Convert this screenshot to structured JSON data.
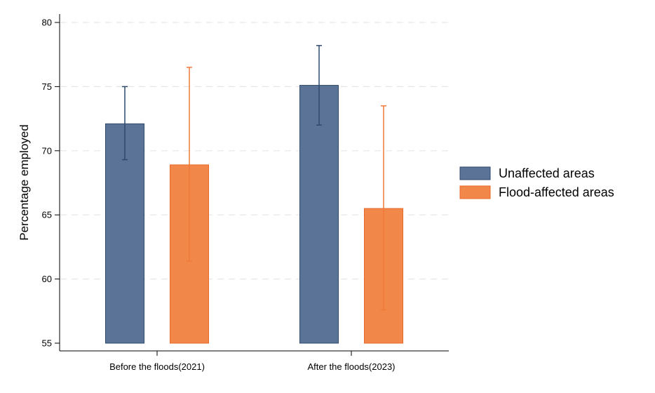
{
  "chart_data": {
    "type": "bar",
    "title": "",
    "xlabel": "",
    "ylabel": "Percentage employed",
    "ylim": [
      55,
      80
    ],
    "yticks": [
      55,
      60,
      65,
      70,
      75,
      80
    ],
    "grid": true,
    "legend_position": "right",
    "categories": [
      "Before the floods(2021)",
      "After the floods(2023)"
    ],
    "series": [
      {
        "name": "Unaffected areas",
        "color": "#5b7396",
        "values": [
          72.1,
          75.1
        ],
        "error_low": [
          69.3,
          72.0
        ],
        "error_high": [
          75.0,
          78.2
        ]
      },
      {
        "name": "Flood-affected areas",
        "color": "#f2874a",
        "values": [
          68.9,
          65.5
        ],
        "error_low": [
          61.4,
          57.6
        ],
        "error_high": [
          76.5,
          73.5
        ]
      }
    ]
  }
}
